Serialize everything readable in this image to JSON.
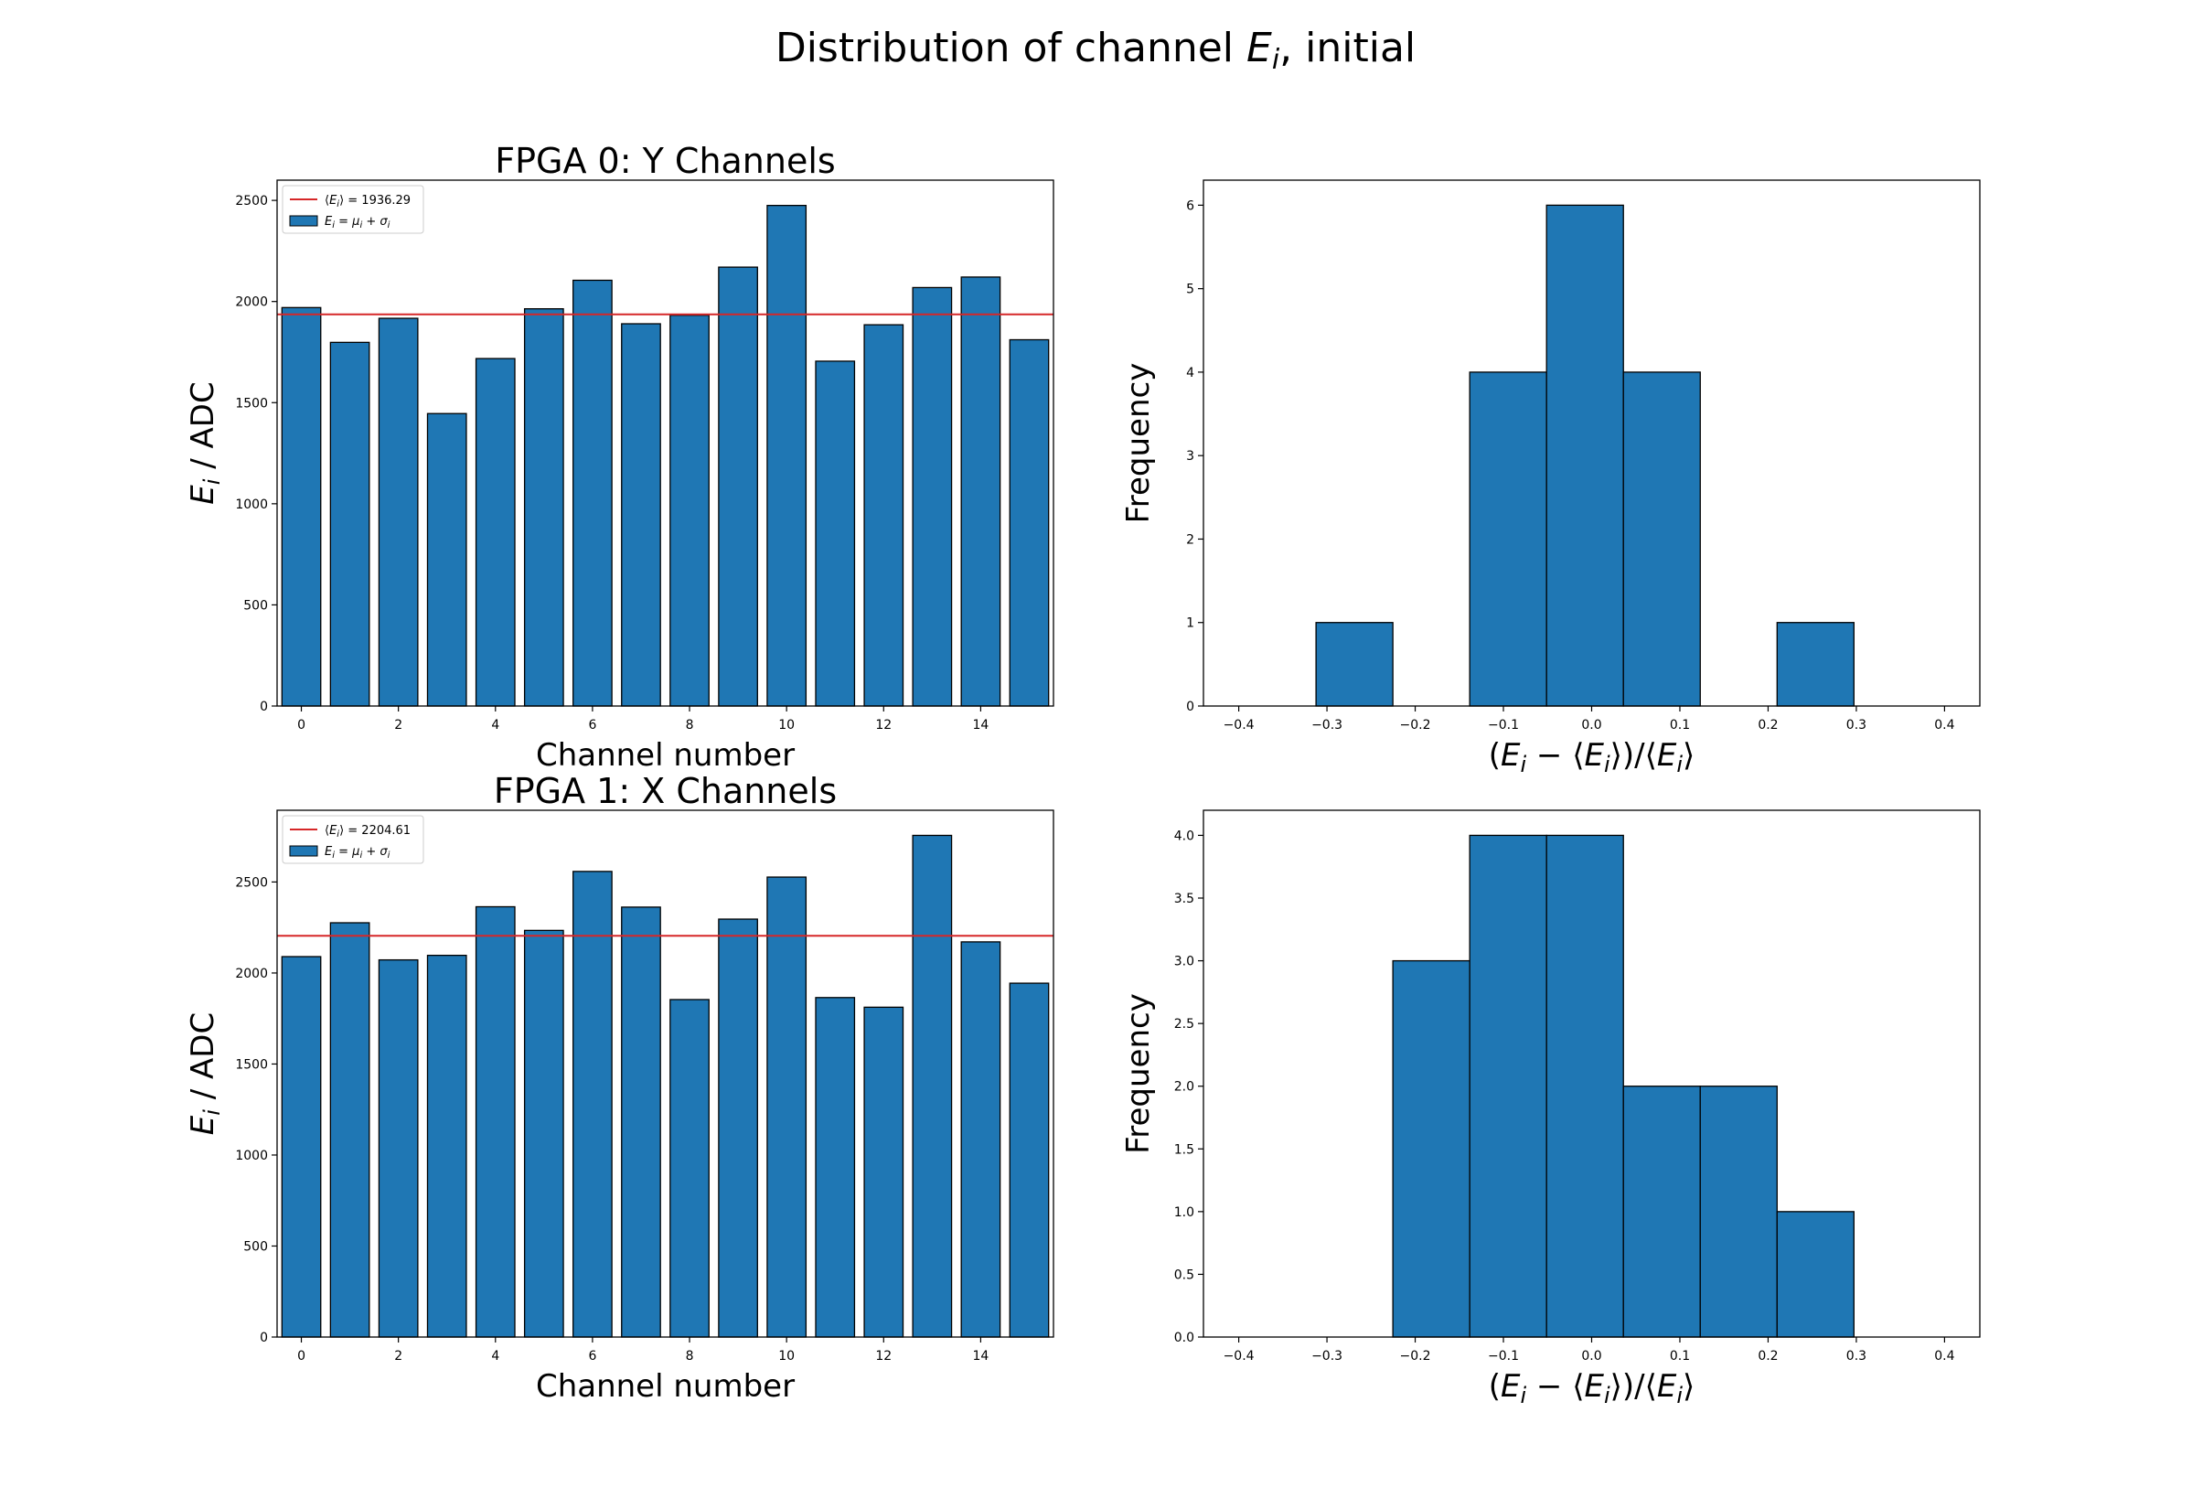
{
  "figure": {
    "title_main": "Distribution of channel ",
    "title_sym": "E",
    "title_sub": "i",
    "title_tail": ", initial"
  },
  "chart_data": [
    {
      "type": "bar",
      "title": "FPGA 0: Y Channels",
      "xlabel": "Channel number",
      "ylabel": "E_i / ADC",
      "categories": [
        0,
        1,
        2,
        3,
        4,
        5,
        6,
        7,
        8,
        9,
        10,
        11,
        12,
        13,
        14,
        15
      ],
      "values": [
        1970,
        1798,
        1917,
        1446,
        1718,
        1964,
        2105,
        1890,
        1932,
        2170,
        2475,
        1705,
        1885,
        2069,
        2121,
        1811
      ],
      "mean_line": 1936.29,
      "mean_label": "⟨E_i⟩ = 1936.29",
      "bar_label": "E_i = μ_i + σ_i",
      "xlim": [
        -0.5,
        15.5
      ],
      "ylim": [
        0,
        2600
      ],
      "xticks": [
        0,
        2,
        4,
        6,
        8,
        10,
        12,
        14
      ],
      "yticks": [
        0,
        500,
        1000,
        1500,
        2000,
        2500
      ],
      "bar_color": "#1f77b4",
      "line_color": "#d62728",
      "legend_position": "upper-left"
    },
    {
      "type": "histogram",
      "title": "",
      "xlabel": "(E_i − ⟨E_i⟩)/⟨E_i⟩",
      "ylabel": "Frequency",
      "bins": [
        {
          "left": -0.3124,
          "right": -0.2253,
          "count": 1
        },
        {
          "left": -0.1382,
          "right": -0.0511,
          "count": 4
        },
        {
          "left": -0.0511,
          "right": 0.036,
          "count": 6
        },
        {
          "left": 0.036,
          "right": 0.1231,
          "count": 4
        },
        {
          "left": 0.2102,
          "right": 0.2973,
          "count": 1
        }
      ],
      "xlim": [
        -0.44,
        0.44
      ],
      "ylim": [
        0,
        6.3
      ],
      "xticks": [
        -0.4,
        -0.3,
        -0.2,
        -0.1,
        0.0,
        0.1,
        0.2,
        0.3,
        0.4
      ],
      "xtick_labels": [
        "−0.4",
        "−0.3",
        "−0.2",
        "−0.1",
        "0.0",
        "0.1",
        "0.2",
        "0.3",
        "0.4"
      ],
      "yticks": [
        0,
        1,
        2,
        3,
        4,
        5,
        6
      ],
      "ytick_labels": [
        "0",
        "1",
        "2",
        "3",
        "4",
        "5",
        "6"
      ],
      "bar_color": "#1f77b4"
    },
    {
      "type": "bar",
      "title": "FPGA 1: X Channels",
      "xlabel": "Channel number",
      "ylabel": "E_i / ADC",
      "categories": [
        0,
        1,
        2,
        3,
        4,
        5,
        6,
        7,
        8,
        9,
        10,
        11,
        12,
        13,
        14,
        15
      ],
      "values": [
        2090,
        2276,
        2072,
        2097,
        2364,
        2234,
        2558,
        2362,
        1854,
        2296,
        2527,
        1865,
        1812,
        2756,
        2171,
        1944
      ],
      "mean_line": 2204.61,
      "mean_label": "⟨E_i⟩ = 2204.61",
      "bar_label": "E_i = μ_i + σ_i",
      "xlim": [
        -0.5,
        15.5
      ],
      "ylim": [
        0,
        2894
      ],
      "xticks": [
        0,
        2,
        4,
        6,
        8,
        10,
        12,
        14
      ],
      "yticks": [
        0,
        500,
        1000,
        1500,
        2000,
        2500
      ],
      "bar_color": "#1f77b4",
      "line_color": "#d62728",
      "legend_position": "upper-left"
    },
    {
      "type": "histogram",
      "title": "",
      "xlabel": "(E_i − ⟨E_i⟩)/⟨E_i⟩",
      "ylabel": "Frequency",
      "bins": [
        {
          "left": -0.2253,
          "right": -0.1382,
          "count": 3
        },
        {
          "left": -0.1382,
          "right": -0.0511,
          "count": 4
        },
        {
          "left": -0.0511,
          "right": 0.036,
          "count": 4
        },
        {
          "left": 0.036,
          "right": 0.1231,
          "count": 2
        },
        {
          "left": 0.1231,
          "right": 0.2102,
          "count": 2
        },
        {
          "left": 0.2102,
          "right": 0.2973,
          "count": 1
        }
      ],
      "xlim": [
        -0.44,
        0.44
      ],
      "ylim": [
        0,
        4.2
      ],
      "xticks": [
        -0.4,
        -0.3,
        -0.2,
        -0.1,
        0.0,
        0.1,
        0.2,
        0.3,
        0.4
      ],
      "xtick_labels": [
        "−0.4",
        "−0.3",
        "−0.2",
        "−0.1",
        "0.0",
        "0.1",
        "0.2",
        "0.3",
        "0.4"
      ],
      "yticks": [
        0,
        0.5,
        1,
        1.5,
        2,
        2.5,
        3,
        3.5,
        4
      ],
      "ytick_labels": [
        "0.0",
        "0.5",
        "1.0",
        "1.5",
        "2.0",
        "2.5",
        "3.0",
        "3.5",
        "4.0"
      ],
      "bar_color": "#1f77b4"
    }
  ]
}
